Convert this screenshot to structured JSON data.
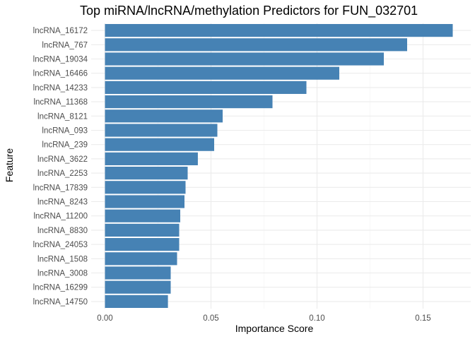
{
  "chart_data": {
    "type": "bar",
    "orientation": "horizontal",
    "title": "Top miRNA/lncRNA/methylation Predictors for FUN_032701",
    "xlabel": "Importance Score",
    "ylabel": "Feature",
    "bar_color": "#4682b4",
    "grid": true,
    "xlim": [
      -0.0065,
      0.1725
    ],
    "x_ticks": [
      0.0,
      0.05,
      0.1,
      0.15
    ],
    "x_tick_labels": [
      "0.00",
      "0.05",
      "0.10",
      "0.15"
    ],
    "categories": [
      "lncRNA_16172",
      "lncRNA_767",
      "lncRNA_19034",
      "lncRNA_16466",
      "lncRNA_14233",
      "lncRNA_11368",
      "lncRNA_8121",
      "lncRNA_093",
      "lncRNA_239",
      "lncRNA_3622",
      "lncRNA_2253",
      "lncRNA_17839",
      "lncRNA_8243",
      "lncRNA_11200",
      "lncRNA_8830",
      "lncRNA_24053",
      "lncRNA_1508",
      "lncRNA_3008",
      "lncRNA_16299",
      "lncRNA_14750"
    ],
    "values": [
      0.164,
      0.1425,
      0.1315,
      0.1105,
      0.095,
      0.079,
      0.0555,
      0.053,
      0.0515,
      0.0438,
      0.039,
      0.038,
      0.0375,
      0.0355,
      0.035,
      0.035,
      0.034,
      0.031,
      0.031,
      0.0297
    ]
  }
}
